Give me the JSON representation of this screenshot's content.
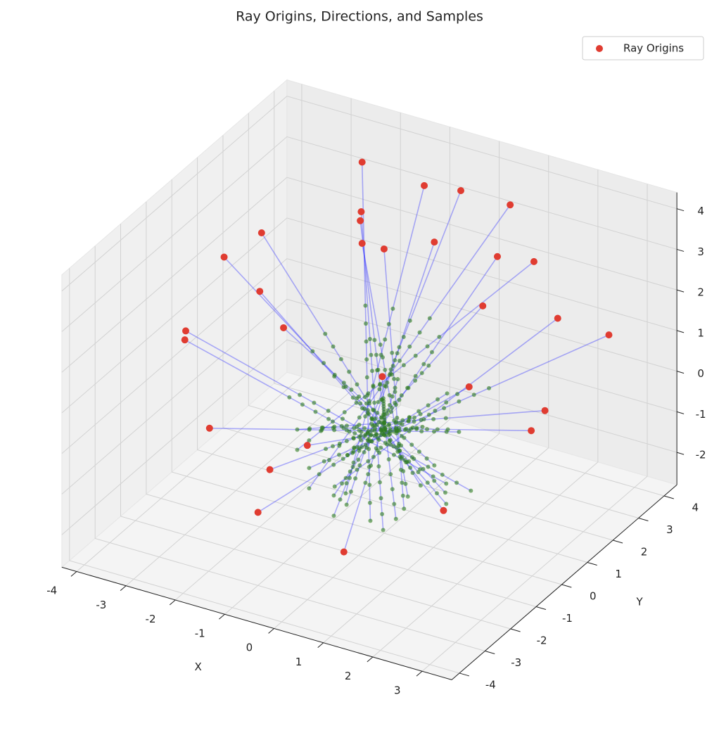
{
  "chart_data": {
    "type": "scatter3d",
    "title": "Ray Origins, Directions, and Samples",
    "x_label": "X",
    "y_label": "Y",
    "xlim": [
      -4.3,
      3.6
    ],
    "ylim": [
      -4.3,
      4.5
    ],
    "zlim": [
      -2.8,
      4.4
    ],
    "xticks": [
      -4,
      -3,
      -2,
      -1,
      0,
      1,
      2,
      3
    ],
    "yticks": [
      -4,
      -3,
      -2,
      -1,
      0,
      1,
      2,
      3,
      4
    ],
    "zticks": [
      -2,
      -1,
      0,
      1,
      2,
      3,
      4
    ],
    "grid": true,
    "legend": "upper right",
    "origins": {
      "name": "Ray Origins",
      "color": "#e03c31",
      "x": [
        -3.5,
        -3,
        -2,
        -1,
        0,
        1,
        2,
        3,
        3.5,
        2.5,
        1,
        -1,
        -2.5,
        -3,
        -2,
        -1,
        0.5,
        2,
        1,
        -1,
        -3.5,
        0,
        3,
        -2,
        0,
        2.5,
        -1.5,
        3,
        1,
        -0.5
      ],
      "y": [
        -1,
        1,
        3,
        3.5,
        3,
        3,
        2,
        1,
        -1,
        -2.5,
        -3.5,
        -3,
        -2,
        -2,
        -1,
        1,
        1,
        0,
        -2,
        -2,
        0.5,
        -3,
        3,
        3,
        0,
        -1.5,
        2,
        0.5,
        2.5,
        -3.5
      ],
      "z": [
        1.5,
        3,
        4,
        3.5,
        4,
        4,
        3.5,
        3,
        1.5,
        0,
        -1,
        -1,
        0,
        2,
        3,
        4,
        4,
        3.5,
        2.5,
        3,
        2.5,
        1,
        1.5,
        2,
        4.2,
        2.5,
        3.5,
        1,
        3,
        0.5
      ]
    },
    "ray_ends": {
      "color": "#3a3aff",
      "x": [
        1.5,
        1,
        0.5,
        0,
        -0.5,
        -1,
        -1.5,
        -1,
        -1.5,
        -1,
        -0.5,
        0.5,
        1,
        1,
        1,
        0.5,
        -0.5,
        -1,
        -0.5,
        0.5,
        1.5,
        0,
        -1,
        1,
        0.3,
        -1,
        0.5,
        -1.5,
        -0.5,
        0
      ],
      "y": [
        0.5,
        -0.5,
        -1.5,
        -1.5,
        -1,
        -1,
        -0.5,
        0,
        0.5,
        1,
        1.5,
        1.5,
        1,
        0.5,
        0.5,
        -0.5,
        -0.5,
        0.5,
        1,
        1,
        -0.5,
        1.5,
        -1,
        -1,
        0.2,
        0.5,
        -1,
        -0.5,
        -1,
        1
      ],
      "z": [
        -1.5,
        -1,
        -1.5,
        -1,
        -2,
        -1.5,
        -1,
        -2,
        -1,
        -0.5,
        0,
        0,
        -0.5,
        -1.5,
        -2,
        -2,
        -2,
        -1.5,
        -1,
        -1.5,
        -1,
        -1,
        -1,
        -1,
        -2.2,
        -1.5,
        -2,
        -0.5,
        -1.5,
        -0.5
      ]
    },
    "sample_color": "#2e7d1e",
    "sample_t": [
      0.4,
      0.45,
      0.5,
      0.55,
      0.6,
      0.65,
      0.7,
      0.75,
      0.8,
      0.85,
      0.9,
      0.95,
      1
    ]
  }
}
